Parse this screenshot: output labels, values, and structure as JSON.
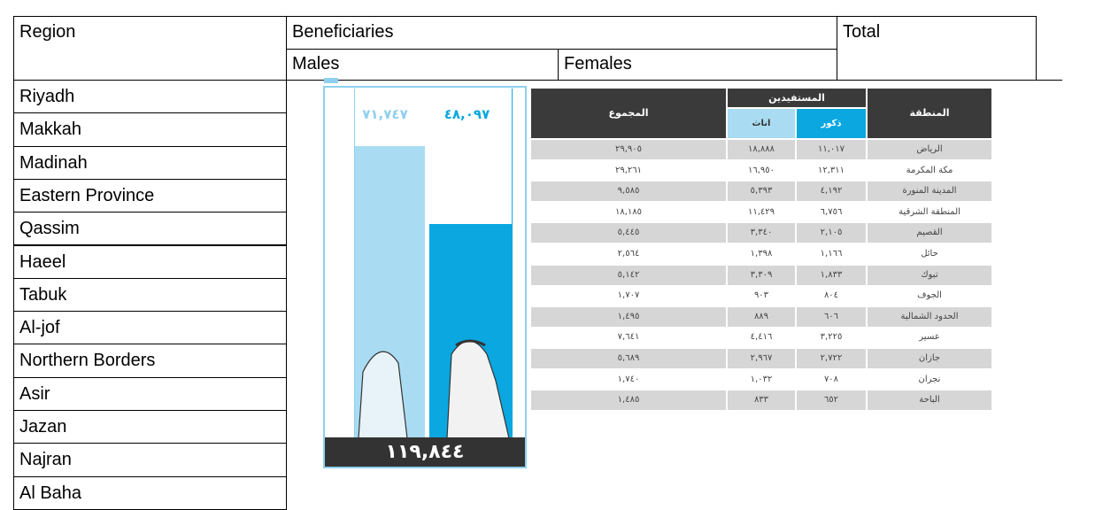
{
  "table": {
    "headers": {
      "region": "Region",
      "beneficiaries": "Beneficiaries",
      "total": "Total",
      "males": "Males",
      "females": "Females"
    },
    "regions": [
      "Riyadh",
      "Makkah",
      "Madinah",
      "Eastern Province",
      "Qassim",
      "Haeel",
      "Tabuk",
      "Al-jof",
      "Northern Borders",
      "Asir",
      "Jazan",
      "Najran",
      "Al Baha"
    ]
  },
  "infographic": {
    "header": {
      "region": "المنطقة",
      "beneficiaries": "المستفيدين",
      "males": "ذكور",
      "females": "اناث",
      "total": "المجموع"
    },
    "rows": [
      [
        "الرياض",
        "١١,٠١٧",
        "١٨,٨٨٨",
        "٢٩,٩٠٥"
      ],
      [
        "مكة المكرمة",
        "١٢,٣١١",
        "١٦,٩٥٠",
        "٢٩,٢٦١"
      ],
      [
        "المدينة المنورة",
        "٤,١٩٢",
        "٥,٣٩٣",
        "٩,٥٨٥"
      ],
      [
        "المنطقة الشرقية",
        "٦,٧٥٦",
        "١١,٤٢٩",
        "١٨,١٨٥"
      ],
      [
        "القصيم",
        "٢,١٠٥",
        "٣,٣٤٠",
        "٥,٤٤٥"
      ],
      [
        "حائل",
        "١,١٦٦",
        "١,٣٩٨",
        "٢,٥٦٤"
      ],
      [
        "تبوك",
        "١,٨٣٣",
        "٣,٣٠٩",
        "٥,١٤٢"
      ],
      [
        "الجوف",
        "٨٠٤",
        "٩٠٣",
        "١,٧٠٧"
      ],
      [
        "الحدود الشمالية",
        "٦٠٦",
        "٨٨٩",
        "١,٤٩٥"
      ],
      [
        "عسير",
        "٣,٢٢٥",
        "٤,٤١٦",
        "٧,٦٤١"
      ],
      [
        "جازان",
        "٢,٧٢٢",
        "٢,٩٦٧",
        "٥,٦٨٩"
      ],
      [
        "نجران",
        "٧٠٨",
        "١,٠٣٢",
        "١,٧٤٠"
      ],
      [
        "الباحة",
        "٦٥٢",
        "٨٣٣",
        "١,٤٨٥"
      ]
    ],
    "females_total": "٧١,٧٤٧",
    "males_total": "٤٨,٠٩٧",
    "grand_total": "١١٩,٨٤٤"
  }
}
